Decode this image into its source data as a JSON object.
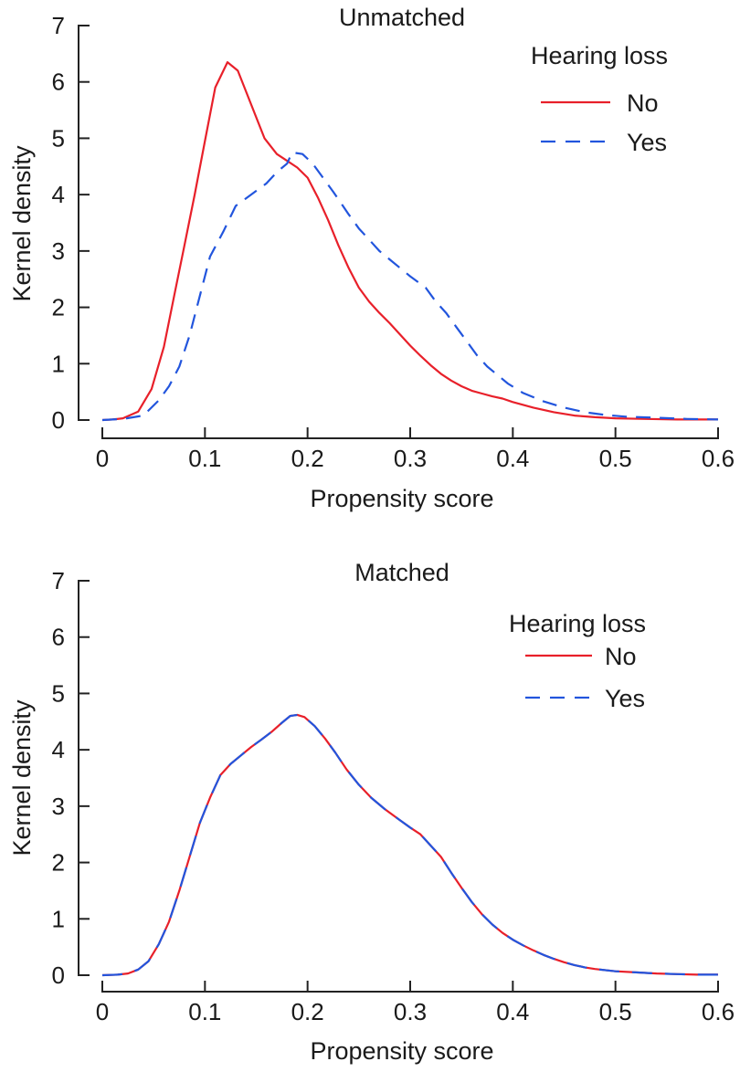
{
  "figure_colors": {
    "no": "#e8202a",
    "yes": "#2255dd",
    "axis": "#222222"
  },
  "chart_data": [
    {
      "type": "line",
      "title": "Unmatched",
      "xlabel": "Propensity score",
      "ylabel": "Kernel density",
      "xlim": [
        0,
        0.6
      ],
      "ylim": [
        0,
        7
      ],
      "xticks": [
        0,
        0.1,
        0.2,
        0.3,
        0.4,
        0.5,
        0.6
      ],
      "xtick_labels": [
        "0",
        "0.1",
        "0.2",
        "0.3",
        "0.4",
        "0.5",
        "0.6"
      ],
      "yticks": [
        0,
        1,
        2,
        3,
        4,
        5,
        6,
        7
      ],
      "ytick_labels": [
        "0",
        "1",
        "2",
        "3",
        "4",
        "5",
        "6",
        "7"
      ],
      "legend": {
        "title": "Hearing loss",
        "placement": "top-right"
      },
      "series": [
        {
          "name": "No",
          "style": "solid",
          "x": [
            0,
            0.01,
            0.02,
            0.035,
            0.048,
            0.06,
            0.07,
            0.08,
            0.09,
            0.1,
            0.11,
            0.122,
            0.132,
            0.145,
            0.158,
            0.17,
            0.18,
            0.19,
            0.2,
            0.21,
            0.22,
            0.23,
            0.24,
            0.25,
            0.26,
            0.27,
            0.28,
            0.29,
            0.3,
            0.31,
            0.32,
            0.33,
            0.34,
            0.35,
            0.36,
            0.37,
            0.38,
            0.39,
            0.4,
            0.42,
            0.44,
            0.46,
            0.48,
            0.5,
            0.53,
            0.56,
            0.6
          ],
          "y": [
            0,
            0.01,
            0.03,
            0.15,
            0.55,
            1.3,
            2.2,
            3.1,
            4.0,
            4.95,
            5.9,
            6.35,
            6.2,
            5.6,
            5.0,
            4.72,
            4.6,
            4.48,
            4.3,
            3.95,
            3.55,
            3.1,
            2.7,
            2.35,
            2.1,
            1.9,
            1.72,
            1.52,
            1.32,
            1.14,
            0.97,
            0.82,
            0.7,
            0.6,
            0.52,
            0.47,
            0.42,
            0.38,
            0.32,
            0.22,
            0.14,
            0.08,
            0.05,
            0.03,
            0.02,
            0.01,
            0.01
          ]
        },
        {
          "name": "Yes",
          "style": "dashed",
          "x": [
            0,
            0.02,
            0.04,
            0.055,
            0.065,
            0.075,
            0.085,
            0.095,
            0.105,
            0.118,
            0.13,
            0.145,
            0.16,
            0.17,
            0.18,
            0.185,
            0.195,
            0.205,
            0.215,
            0.225,
            0.24,
            0.25,
            0.26,
            0.27,
            0.28,
            0.29,
            0.3,
            0.315,
            0.325,
            0.335,
            0.345,
            0.355,
            0.365,
            0.375,
            0.385,
            0.395,
            0.41,
            0.43,
            0.45,
            0.47,
            0.49,
            0.51,
            0.54,
            0.57,
            0.6
          ],
          "y": [
            0,
            0.02,
            0.08,
            0.35,
            0.6,
            0.95,
            1.5,
            2.2,
            2.9,
            3.35,
            3.8,
            4.0,
            4.2,
            4.4,
            4.55,
            4.75,
            4.72,
            4.55,
            4.3,
            4.05,
            3.65,
            3.4,
            3.2,
            3.0,
            2.85,
            2.7,
            2.55,
            2.35,
            2.1,
            1.9,
            1.65,
            1.4,
            1.15,
            0.95,
            0.8,
            0.65,
            0.48,
            0.33,
            0.22,
            0.14,
            0.09,
            0.06,
            0.04,
            0.02,
            0.01
          ]
        }
      ]
    },
    {
      "type": "line",
      "title": "Matched",
      "xlabel": "Propensity score",
      "ylabel": "Kernel density",
      "xlim": [
        0,
        0.6
      ],
      "ylim": [
        0,
        7
      ],
      "xticks": [
        0,
        0.1,
        0.2,
        0.3,
        0.4,
        0.5,
        0.6
      ],
      "xtick_labels": [
        "0",
        "0.1",
        "0.2",
        "0.3",
        "0.4",
        "0.5",
        "0.6"
      ],
      "yticks": [
        0,
        1,
        2,
        3,
        4,
        5,
        6,
        7
      ],
      "ytick_labels": [
        "0",
        "1",
        "2",
        "3",
        "4",
        "5",
        "6",
        "7"
      ],
      "legend": {
        "title": "Hearing loss",
        "placement": "top-right"
      },
      "series": [
        {
          "name": "No",
          "style": "solid",
          "x": [
            0,
            0.015,
            0.025,
            0.035,
            0.045,
            0.055,
            0.065,
            0.075,
            0.085,
            0.095,
            0.105,
            0.115,
            0.125,
            0.135,
            0.145,
            0.155,
            0.165,
            0.175,
            0.183,
            0.19,
            0.197,
            0.207,
            0.217,
            0.227,
            0.238,
            0.25,
            0.262,
            0.275,
            0.29,
            0.3,
            0.31,
            0.32,
            0.33,
            0.34,
            0.35,
            0.36,
            0.37,
            0.38,
            0.39,
            0.4,
            0.41,
            0.42,
            0.43,
            0.44,
            0.45,
            0.46,
            0.47,
            0.48,
            0.5,
            0.52,
            0.54,
            0.56,
            0.58,
            0.6
          ],
          "y": [
            0,
            0.01,
            0.03,
            0.1,
            0.25,
            0.55,
            0.95,
            1.5,
            2.1,
            2.7,
            3.15,
            3.55,
            3.75,
            3.9,
            4.05,
            4.18,
            4.32,
            4.48,
            4.6,
            4.62,
            4.58,
            4.42,
            4.2,
            3.95,
            3.65,
            3.38,
            3.15,
            2.95,
            2.75,
            2.62,
            2.5,
            2.3,
            2.1,
            1.82,
            1.55,
            1.3,
            1.08,
            0.9,
            0.75,
            0.63,
            0.53,
            0.44,
            0.36,
            0.29,
            0.23,
            0.18,
            0.14,
            0.11,
            0.07,
            0.05,
            0.03,
            0.02,
            0.01,
            0.01
          ]
        },
        {
          "name": "Yes",
          "style": "dashed",
          "x": [
            0,
            0.015,
            0.025,
            0.035,
            0.045,
            0.055,
            0.065,
            0.075,
            0.085,
            0.095,
            0.105,
            0.115,
            0.125,
            0.135,
            0.145,
            0.155,
            0.165,
            0.175,
            0.183,
            0.19,
            0.197,
            0.207,
            0.217,
            0.227,
            0.238,
            0.25,
            0.262,
            0.275,
            0.29,
            0.3,
            0.31,
            0.32,
            0.33,
            0.34,
            0.35,
            0.36,
            0.37,
            0.38,
            0.39,
            0.4,
            0.41,
            0.42,
            0.43,
            0.44,
            0.45,
            0.46,
            0.47,
            0.48,
            0.5,
            0.52,
            0.54,
            0.56,
            0.58,
            0.6
          ],
          "y": [
            0,
            0.01,
            0.03,
            0.1,
            0.25,
            0.55,
            0.95,
            1.5,
            2.1,
            2.7,
            3.15,
            3.55,
            3.75,
            3.9,
            4.05,
            4.18,
            4.32,
            4.48,
            4.6,
            4.62,
            4.58,
            4.42,
            4.2,
            3.95,
            3.65,
            3.38,
            3.15,
            2.95,
            2.75,
            2.62,
            2.5,
            2.3,
            2.1,
            1.82,
            1.55,
            1.3,
            1.08,
            0.9,
            0.75,
            0.63,
            0.53,
            0.44,
            0.36,
            0.29,
            0.23,
            0.18,
            0.14,
            0.11,
            0.07,
            0.05,
            0.03,
            0.02,
            0.01,
            0.01
          ]
        }
      ]
    }
  ]
}
